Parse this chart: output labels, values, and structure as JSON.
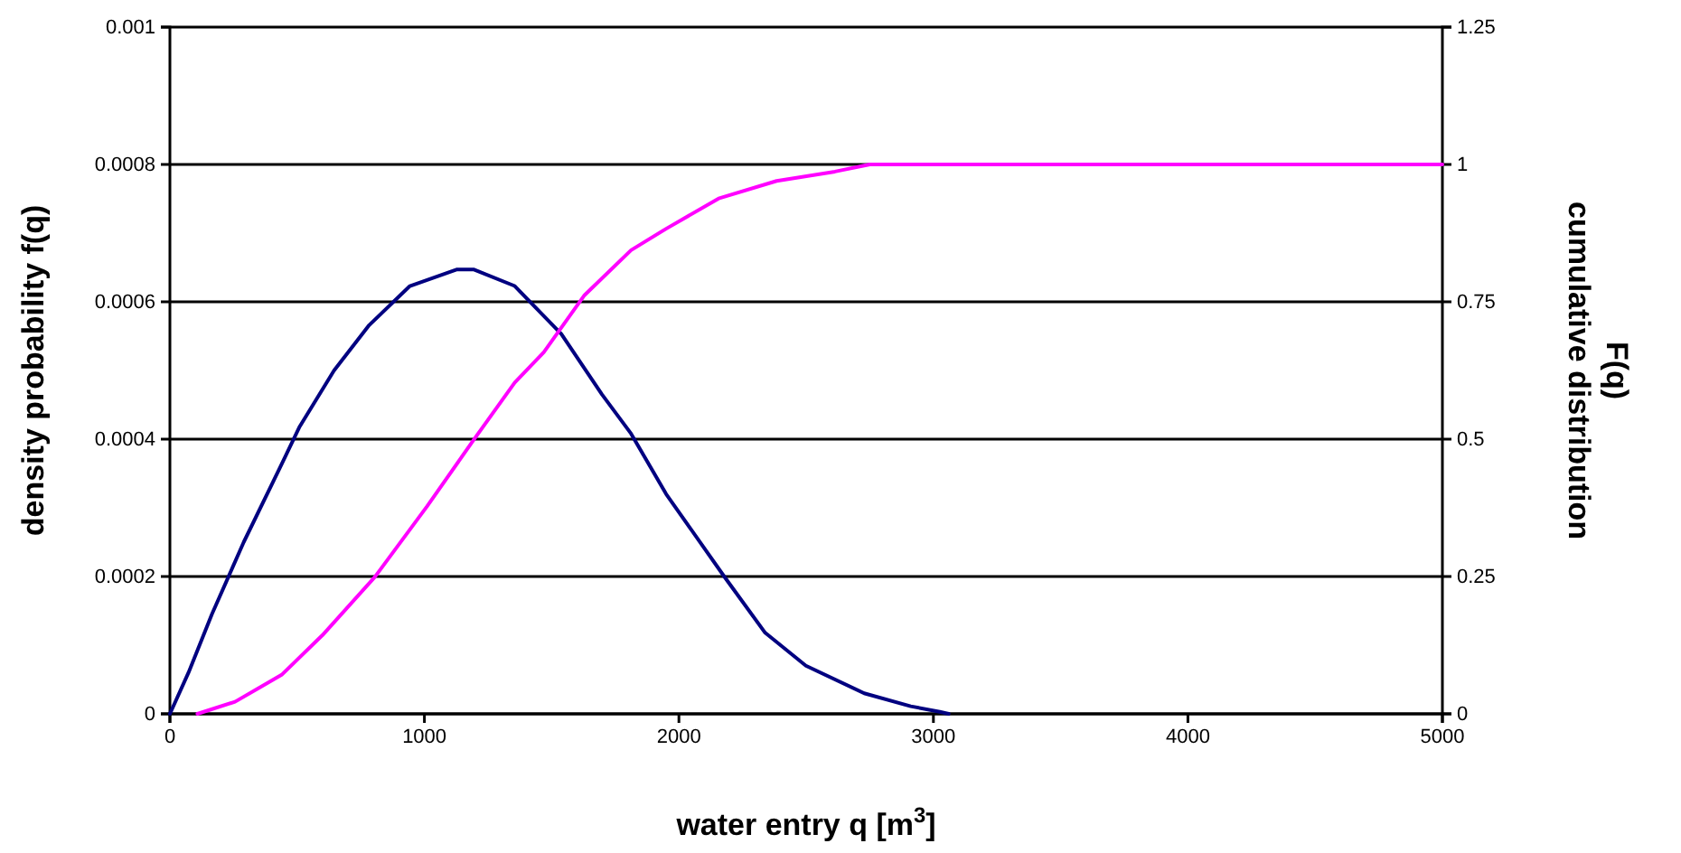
{
  "chart_data": {
    "type": "line",
    "xlabel": "water entry q [m$^{3}$]",
    "ylabel": "density probability f(q)",
    "y2label": "cumulative distribution F(q)",
    "xlim": [
      0,
      5000
    ],
    "xticks": [
      0,
      1000,
      2000,
      3000,
      4000,
      5000
    ],
    "ylim": [
      0,
      0.001
    ],
    "yticks": [
      0,
      0.0002,
      0.0004,
      0.0006,
      0.0008,
      0.001
    ],
    "y2lim": [
      0,
      1.25
    ],
    "y2ticks": [
      0,
      0.25,
      0.5,
      0.75,
      1,
      1.25
    ],
    "grid": "y",
    "marker": "none",
    "line_style": "solid",
    "series": [
      {
        "color": "#000080",
        "x": [
          0,
          73,
          165,
          290,
          428,
          508,
          645,
          783,
          943,
          1126,
          1195,
          1355,
          1538,
          1698,
          1812,
          1950,
          2178,
          2339,
          2499,
          2728,
          2911,
          3025,
          3060
        ],
        "values": [
          0,
          6e-05,
          0.000145,
          0.00025,
          0.000355,
          0.000417,
          0.0005,
          0.000566,
          0.000623,
          0.000647,
          0.000647,
          0.000623,
          0.000553,
          0.000465,
          0.000408,
          0.00032,
          0.0002,
          0.000118,
          7e-05,
          3e-05,
          1.1e-05,
          3e-06,
          0
        ]
      },
      {
        "color": "#ff00ff",
        "axis": "y2",
        "x": [
          108,
          256,
          439,
          599,
          805,
          1011,
          1194,
          1355,
          1469,
          1629,
          1812,
          1950,
          2156,
          2384,
          2613,
          2750,
          5000
        ],
        "values": [
          0,
          0.022,
          0.071,
          0.143,
          0.249,
          0.378,
          0.499,
          0.603,
          0.658,
          0.762,
          0.844,
          0.883,
          0.938,
          0.97,
          0.987,
          1,
          1
        ]
      }
    ]
  }
}
